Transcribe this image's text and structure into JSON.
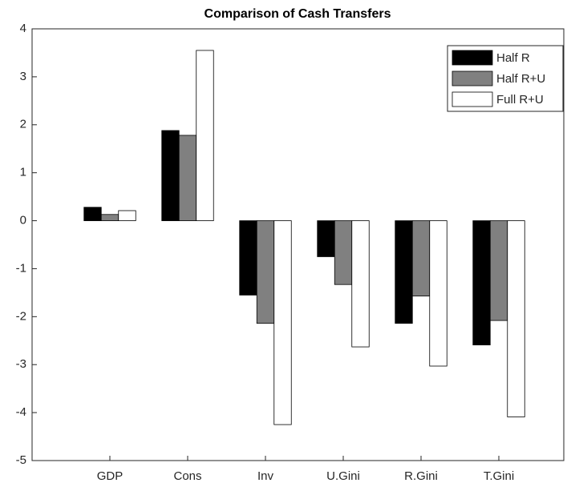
{
  "chart_data": {
    "type": "bar",
    "title": "Comparison of Cash Transfers",
    "categories": [
      "GDP",
      "Cons",
      "Inv",
      "U.Gini",
      "R.Gini",
      "T.Gini"
    ],
    "series": [
      {
        "name": "Half R",
        "color": "#000000",
        "values": [
          0.28,
          1.88,
          -1.55,
          -0.75,
          -2.14,
          -2.59
        ]
      },
      {
        "name": "Half R+U",
        "color": "#808080",
        "values": [
          0.13,
          1.78,
          -2.14,
          -1.33,
          -1.57,
          -2.08
        ]
      },
      {
        "name": "Full R+U",
        "color": "#ffffff",
        "values": [
          0.21,
          3.55,
          -4.25,
          -2.63,
          -3.03,
          -4.09
        ]
      }
    ],
    "ylim": [
      -5,
      4
    ],
    "yticks": [
      -5,
      -4,
      -3,
      -2,
      -1,
      0,
      1,
      2,
      3,
      4
    ],
    "legend": "upper right"
  }
}
